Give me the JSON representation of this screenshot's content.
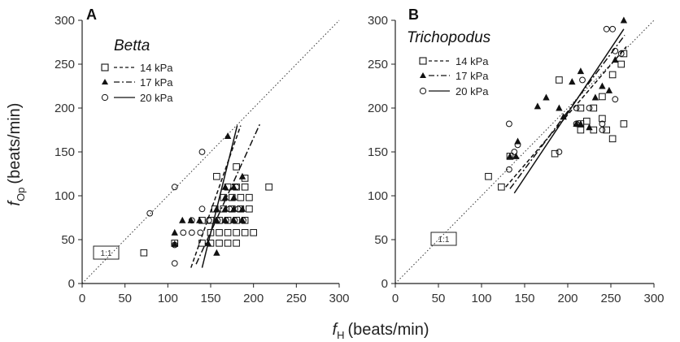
{
  "xlabel": {
    "main": "f",
    "sub": "H",
    "unit": "(beats/min)"
  },
  "ylabel": {
    "main": "f",
    "sub": "Op",
    "unit": "(beats/min)"
  },
  "box_label": "1:1",
  "colors": {
    "ink": "#111111",
    "axis": "#222222"
  },
  "chart_data": [
    {
      "type": "scatter",
      "panel": "A",
      "title": "Betta",
      "xlim": [
        0,
        300
      ],
      "ylim": [
        0,
        300
      ],
      "xticks": [
        0,
        50,
        100,
        150,
        200,
        250,
        300
      ],
      "yticks": [
        0,
        50,
        100,
        150,
        200,
        250,
        300
      ],
      "identity_line": true,
      "legend_placement": "top-left",
      "series": [
        {
          "name": "14 kPa",
          "marker": "open-square",
          "line_style": "dashed",
          "points": [
            [
              72,
              35
            ],
            [
              108,
              46
            ],
            [
              140,
              46
            ],
            [
              150,
              46
            ],
            [
              160,
              46
            ],
            [
              170,
              46
            ],
            [
              180,
              46
            ],
            [
              150,
              58
            ],
            [
              160,
              58
            ],
            [
              170,
              58
            ],
            [
              180,
              58
            ],
            [
              190,
              58
            ],
            [
              200,
              58
            ],
            [
              140,
              72
            ],
            [
              150,
              72
            ],
            [
              160,
              72
            ],
            [
              170,
              72
            ],
            [
              180,
              72
            ],
            [
              190,
              72
            ],
            [
              155,
              85
            ],
            [
              165,
              85
            ],
            [
              175,
              85
            ],
            [
              185,
              85
            ],
            [
              195,
              85
            ],
            [
              165,
              98
            ],
            [
              175,
              98
            ],
            [
              185,
              98
            ],
            [
              195,
              98
            ],
            [
              170,
              110
            ],
            [
              180,
              110
            ],
            [
              190,
              110
            ],
            [
              190,
              120
            ],
            [
              157,
              122
            ],
            [
              180,
              133
            ],
            [
              218,
              110
            ]
          ],
          "fit": [
            [
              127,
              18
            ],
            [
              185,
              180
            ]
          ]
        },
        {
          "name": "17 kPa",
          "marker": "filled-triangle",
          "line_style": "dash-dot",
          "points": [
            [
              108,
              45
            ],
            [
              108,
              58
            ],
            [
              117,
              72
            ],
            [
              127,
              72
            ],
            [
              137,
              72
            ],
            [
              147,
              46
            ],
            [
              157,
              72
            ],
            [
              167,
              72
            ],
            [
              177,
              72
            ],
            [
              187,
              72
            ],
            [
              157,
              85
            ],
            [
              167,
              85
            ],
            [
              177,
              85
            ],
            [
              187,
              85
            ],
            [
              167,
              98
            ],
            [
              177,
              98
            ],
            [
              167,
              110
            ],
            [
              177,
              110
            ],
            [
              187,
              122
            ],
            [
              157,
              35
            ],
            [
              170,
              168
            ]
          ],
          "fit": [
            [
              133,
              22
            ],
            [
              208,
              183
            ]
          ]
        },
        {
          "name": "20 kPa",
          "marker": "open-circle",
          "line_style": "solid",
          "points": [
            [
              108,
              23
            ],
            [
              108,
              44
            ],
            [
              118,
              58
            ],
            [
              128,
              58
            ],
            [
              128,
              72
            ],
            [
              138,
              58
            ],
            [
              140,
              85
            ],
            [
              148,
              72
            ],
            [
              158,
              72
            ],
            [
              168,
              72
            ],
            [
              178,
              72
            ],
            [
              188,
              72
            ],
            [
              172,
              85
            ],
            [
              182,
              85
            ],
            [
              108,
              110
            ],
            [
              79,
              80
            ],
            [
              140,
              150
            ],
            [
              180,
              110
            ]
          ],
          "fit": [
            [
              140,
              18
            ],
            [
              181,
              180
            ]
          ]
        }
      ]
    },
    {
      "type": "scatter",
      "panel": "B",
      "title": "Trichopodus",
      "xlim": [
        0,
        300
      ],
      "ylim": [
        0,
        300
      ],
      "xticks": [
        0,
        50,
        100,
        150,
        200,
        250,
        300
      ],
      "yticks": [
        0,
        50,
        100,
        150,
        200,
        250,
        300
      ],
      "identity_line": true,
      "legend_placement": "top-left",
      "series": [
        {
          "name": "14 kPa",
          "marker": "open-square",
          "line_style": "dashed",
          "points": [
            [
              108,
              122
            ],
            [
              123,
              110
            ],
            [
              133,
              145
            ],
            [
              185,
              148
            ],
            [
              190,
              232
            ],
            [
              215,
              175
            ],
            [
              215,
              182
            ],
            [
              215,
              200
            ],
            [
              222,
              185
            ],
            [
              230,
              175
            ],
            [
              230,
              200
            ],
            [
              240,
              188
            ],
            [
              240,
              213
            ],
            [
              252,
              165
            ],
            [
              252,
              238
            ],
            [
              262,
              250
            ],
            [
              265,
              262
            ],
            [
              265,
              182
            ],
            [
              245,
              175
            ]
          ],
          "fit": [
            [
              128,
              110
            ],
            [
              268,
              270
            ]
          ]
        },
        {
          "name": "17 kPa",
          "marker": "filled-triangle",
          "line_style": "dash-dot",
          "points": [
            [
              133,
              145
            ],
            [
              140,
              145
            ],
            [
              142,
              162
            ],
            [
              165,
              202
            ],
            [
              175,
              212
            ],
            [
              190,
              200
            ],
            [
              195,
              190
            ],
            [
              205,
              230
            ],
            [
              210,
              182
            ],
            [
              215,
              242
            ],
            [
              225,
              178
            ],
            [
              232,
              212
            ],
            [
              240,
              225
            ],
            [
              248,
              220
            ],
            [
              255,
              255
            ],
            [
              265,
              300
            ],
            [
              215,
              182
            ]
          ],
          "fit": [
            [
              133,
              108
            ],
            [
              266,
              283
            ]
          ]
        },
        {
          "name": "20 kPa",
          "marker": "open-circle",
          "line_style": "solid",
          "points": [
            [
              132,
              182
            ],
            [
              132,
              130
            ],
            [
              138,
              150
            ],
            [
              142,
              158
            ],
            [
              190,
              150
            ],
            [
              210,
              182
            ],
            [
              210,
              200
            ],
            [
              217,
              232
            ],
            [
              225,
              200
            ],
            [
              240,
              182
            ],
            [
              240,
              175
            ],
            [
              245,
              290
            ],
            [
              252,
              290
            ],
            [
              255,
              210
            ],
            [
              255,
              265
            ],
            [
              262,
              262
            ]
          ],
          "fit": [
            [
              138,
              103
            ],
            [
              265,
              290
            ]
          ]
        }
      ]
    }
  ]
}
